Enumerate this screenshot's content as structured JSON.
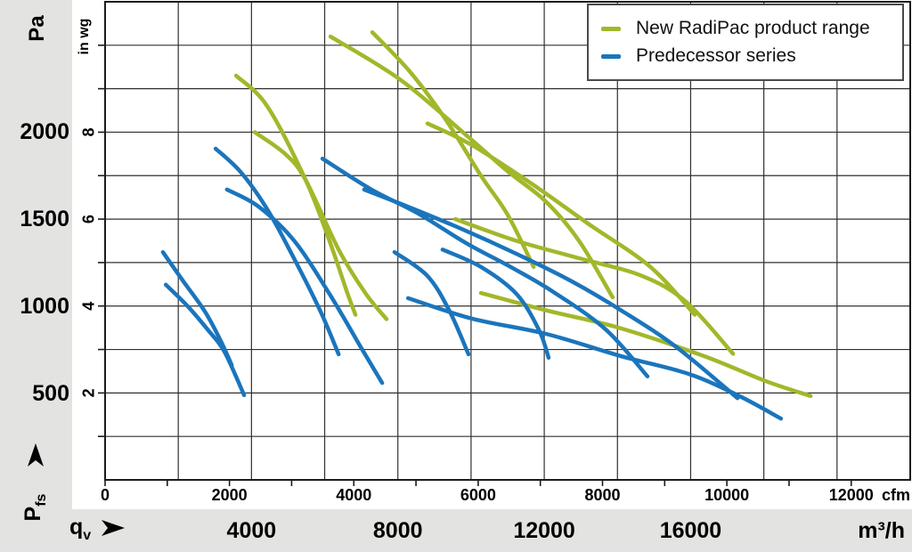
{
  "legend": {
    "items": [
      {
        "label": "New RadiPac product range",
        "color": "#a3b72a"
      },
      {
        "label": "Predecessor series",
        "color": "#1b75bc"
      }
    ]
  },
  "labels": {
    "y_unit_outer": "Pa",
    "y_unit_inner": "in wg",
    "x_unit_inner": "cfm",
    "x_unit_outer": "m³/h",
    "y_quantity_base": "P",
    "y_quantity_sub": "fs",
    "x_quantity_base": "q",
    "x_quantity_sub": "v"
  },
  "axes": {
    "y_pa_ticks": [
      {
        "label": "2000",
        "pa": 2000
      },
      {
        "label": "1500",
        "pa": 1500
      },
      {
        "label": "1000",
        "pa": 1000
      },
      {
        "label": "500",
        "pa": 500
      }
    ],
    "y_inwg_labeled_ticks": [
      2,
      4,
      6,
      8
    ],
    "y_inwg_minor_ticks": [
      1,
      2,
      3,
      4,
      5,
      6,
      7,
      8,
      9,
      10
    ],
    "x_cfm_labeled_ticks": [
      0,
      2000,
      4000,
      6000,
      8000,
      10000,
      12000
    ],
    "x_cfm_minor_ticks": [
      0,
      1000,
      2000,
      3000,
      4000,
      5000,
      6000,
      7000,
      8000,
      9000,
      10000,
      11000,
      12000
    ],
    "x_m3h_labeled_ticks": [
      4000,
      8000,
      12000,
      16000
    ]
  },
  "chart_data": {
    "type": "line",
    "title": "",
    "xlabel": "qv",
    "ylabel": "Pfs",
    "x_units": [
      "m³/h",
      "cfm"
    ],
    "y_units": [
      "Pa",
      "in wg"
    ],
    "x_range_m3h": [
      0,
      22000
    ],
    "y_range_inwg": [
      0,
      11
    ],
    "grid": "on",
    "gridline_every_m3h": 2000,
    "gridline_every_inwg": 1,
    "legend_position": "top-right",
    "colors": {
      "new_radipac": "#a3b72a",
      "predecessor": "#1b75bc",
      "grid": "#303030",
      "frame": "#1c1c1c",
      "background": "#e3e3e2"
    },
    "series": [
      {
        "name": "New RadiPac product range",
        "key": "new-radipac",
        "color": "#a3b72a",
        "curves_m3h_inwg": [
          [
            [
              3580,
              9.3
            ],
            [
              4430,
              8.6
            ],
            [
              5480,
              6.9
            ],
            [
              6130,
              5.5
            ],
            [
              6620,
              4.3
            ],
            [
              6840,
              3.8
            ]
          ],
          [
            [
              4090,
              8.0
            ],
            [
              4920,
              7.5
            ],
            [
              5480,
              6.9
            ],
            [
              6380,
              5.3
            ],
            [
              7110,
              4.3
            ],
            [
              7690,
              3.7
            ]
          ],
          [
            [
              6160,
              10.2
            ],
            [
              8080,
              9.2
            ],
            [
              9910,
              7.9
            ],
            [
              11000,
              7.1
            ],
            [
              12050,
              6.4
            ],
            [
              12950,
              5.5
            ],
            [
              13870,
              4.2
            ]
          ],
          [
            [
              7300,
              10.3
            ],
            [
              8320,
              9.4
            ],
            [
              9300,
              8.3
            ],
            [
              10270,
              7.0
            ],
            [
              11000,
              6.1
            ],
            [
              11710,
              4.9
            ]
          ],
          [
            [
              8810,
              8.2
            ],
            [
              10030,
              7.7
            ],
            [
              11680,
              6.8
            ],
            [
              13190,
              5.9
            ],
            [
              14900,
              4.9
            ],
            [
              16110,
              3.8
            ]
          ],
          [
            [
              9570,
              6.0
            ],
            [
              11240,
              5.5
            ],
            [
              12950,
              5.1
            ],
            [
              14650,
              4.7
            ],
            [
              15870,
              4.1
            ],
            [
              17160,
              2.9
            ]
          ],
          [
            [
              10270,
              4.3
            ],
            [
              12050,
              3.9
            ],
            [
              14040,
              3.5
            ],
            [
              16360,
              2.85
            ],
            [
              18060,
              2.27
            ],
            [
              19280,
              1.93
            ]
          ]
        ]
      },
      {
        "name": "Predecessor series",
        "key": "predecessor",
        "color": "#1b75bc",
        "curves_m3h_inwg": [
          [
            [
              1580,
              5.24
            ],
            [
              2120,
              4.59
            ],
            [
              2730,
              3.87
            ],
            [
              3160,
              3.2
            ],
            [
              3460,
              2.64
            ]
          ],
          [
            [
              1660,
              4.49
            ],
            [
              2240,
              4.01
            ],
            [
              2800,
              3.46
            ],
            [
              3260,
              2.95
            ],
            [
              3800,
              1.95
            ]
          ],
          [
            [
              3020,
              7.62
            ],
            [
              3700,
              7.09
            ],
            [
              4430,
              6.23
            ],
            [
              5160,
              5.1
            ],
            [
              5890,
              3.87
            ],
            [
              6380,
              2.89
            ]
          ],
          [
            [
              3330,
              6.68
            ],
            [
              4190,
              6.29
            ],
            [
              5160,
              5.51
            ],
            [
              6130,
              4.28
            ],
            [
              6990,
              3.05
            ],
            [
              7570,
              2.23
            ]
          ],
          [
            [
              5940,
              7.39
            ],
            [
              7280,
              6.68
            ],
            [
              8570,
              6.12
            ],
            [
              9860,
              5.45
            ],
            [
              11080,
              4.9
            ],
            [
              12220,
              4.34
            ],
            [
              13680,
              3.46
            ],
            [
              14820,
              2.38
            ]
          ],
          [
            [
              7080,
              6.68
            ],
            [
              8320,
              6.27
            ],
            [
              9780,
              5.76
            ],
            [
              11240,
              5.2
            ],
            [
              12700,
              4.59
            ],
            [
              14160,
              3.87
            ],
            [
              15620,
              3.05
            ],
            [
              17280,
              1.88
            ]
          ],
          [
            [
              7910,
              5.24
            ],
            [
              8810,
              4.69
            ],
            [
              9420,
              3.87
            ],
            [
              9930,
              2.89
            ]
          ],
          [
            [
              9220,
              5.3
            ],
            [
              10270,
              4.9
            ],
            [
              11240,
              4.28
            ],
            [
              11850,
              3.46
            ],
            [
              12120,
              2.81
            ]
          ],
          [
            [
              8280,
              4.18
            ],
            [
              10030,
              3.71
            ],
            [
              12050,
              3.36
            ],
            [
              14090,
              2.85
            ],
            [
              15940,
              2.44
            ],
            [
              17330,
              1.93
            ],
            [
              18470,
              1.41
            ]
          ]
        ]
      }
    ]
  }
}
